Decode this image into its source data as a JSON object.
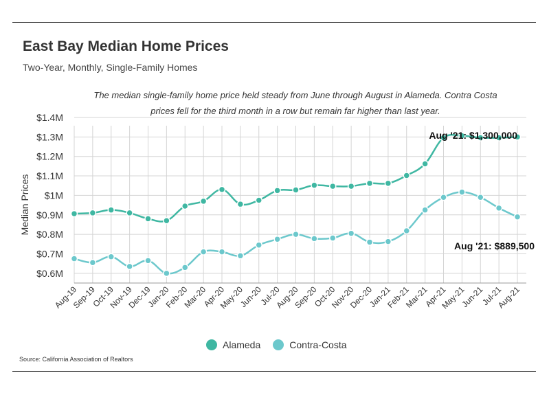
{
  "header": {
    "title": "East Bay Median Home Prices",
    "subtitle": "Two-Year, Monthly, Single-Family Homes",
    "note": "The median single-family home price held steady from June through August in Alameda. Contra Costa prices fell for the third month in a row but remain far higher than last year."
  },
  "source": "Source:  California Association of Realtors",
  "colors": {
    "alameda": "#3fb7a2",
    "contra_costa": "#6cc8cc",
    "grid": "#d4d4d4",
    "axis": "#999999"
  },
  "chart_data": {
    "type": "line",
    "xlabel": "",
    "ylabel": "Median Prices",
    "ylim": [
      0.55,
      1.4
    ],
    "ytick_values": [
      0.6,
      0.7,
      0.8,
      0.9,
      1.0,
      1.1,
      1.2,
      1.3,
      1.4
    ],
    "ytick_labels": [
      "$0.6M",
      "$0.7M",
      "$0.8M",
      "$0.9M",
      "$1M",
      "$1.1M",
      "$1.2M",
      "$1.3M",
      "$1.4M"
    ],
    "grid": true,
    "legend_position": "bottom-center",
    "categories": [
      "Aug-19",
      "Sep-19",
      "Oct-19",
      "Nov-19",
      "Dec-19",
      "Jan-20",
      "Feb-20",
      "Mar-20",
      "Apr-20",
      "May-20",
      "Jun-20",
      "Jul-20",
      "Aug-20",
      "Sep-20",
      "Oct-20",
      "Nov-20",
      "Dec-20",
      "Jan-21",
      "Feb-21",
      "Mar-21",
      "Apr-21",
      "May-21",
      "Jun-21",
      "Jul-21",
      "Aug-21"
    ],
    "series": [
      {
        "name": "Alameda",
        "color_key": "alameda",
        "values": [
          0.906,
          0.91,
          0.925,
          0.91,
          0.88,
          0.87,
          0.945,
          0.97,
          1.03,
          0.955,
          0.975,
          1.025,
          1.028,
          1.052,
          1.047,
          1.047,
          1.062,
          1.062,
          1.102,
          1.162,
          1.296,
          1.306,
          1.296,
          1.296,
          1.3
        ]
      },
      {
        "name": "Contra-Costa",
        "color_key": "contra_costa",
        "values": [
          0.675,
          0.655,
          0.685,
          0.635,
          0.665,
          0.6,
          0.63,
          0.71,
          0.71,
          0.69,
          0.745,
          0.775,
          0.8,
          0.778,
          0.781,
          0.805,
          0.76,
          0.763,
          0.818,
          0.925,
          0.99,
          1.017,
          0.99,
          0.935,
          0.8895
        ]
      }
    ],
    "annotations": [
      {
        "text": "Aug '21: $1,300,000",
        "series": "Alameda",
        "category": "Aug-21"
      },
      {
        "text": "Aug '21: $889,500",
        "series": "Contra-Costa",
        "category": "Aug-21"
      }
    ]
  }
}
